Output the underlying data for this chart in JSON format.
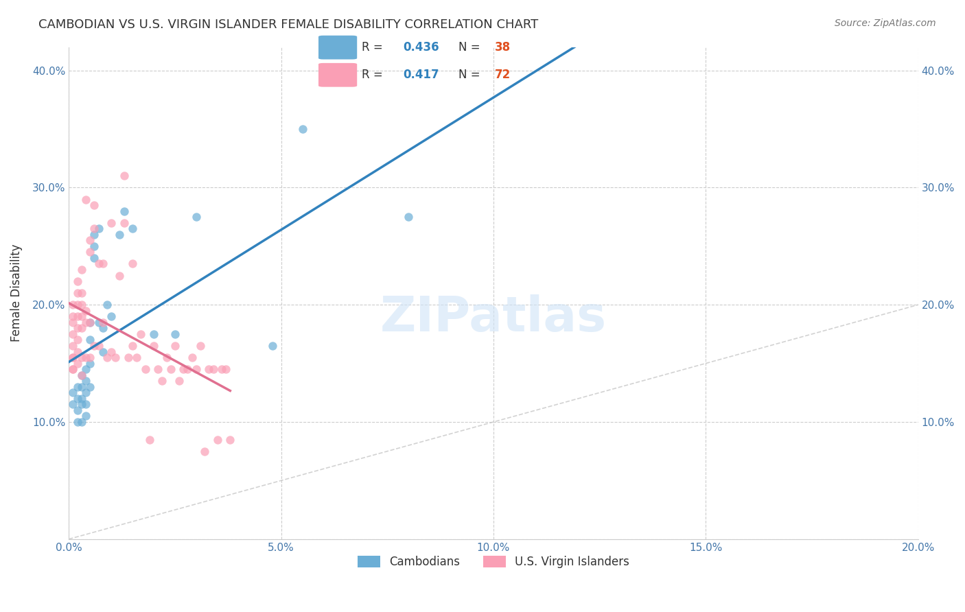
{
  "title": "CAMBODIAN VS U.S. VIRGIN ISLANDER FEMALE DISABILITY CORRELATION CHART",
  "source": "Source: ZipAtlas.com",
  "ylabel": "Female Disability",
  "xlabel": "",
  "xlim": [
    0.0,
    0.2
  ],
  "ylim": [
    0.0,
    0.42
  ],
  "xticks": [
    0.0,
    0.05,
    0.1,
    0.15,
    0.2
  ],
  "yticks": [
    0.0,
    0.1,
    0.2,
    0.3,
    0.4
  ],
  "xtick_labels": [
    "0.0%",
    "5.0%",
    "10.0%",
    "15.0%",
    "20.0%"
  ],
  "ytick_labels": [
    "",
    "10.0%",
    "20.0%",
    "30.0%",
    "40.0%"
  ],
  "legend_r1": "R = 0.436",
  "legend_n1": "N = 38",
  "legend_r2": "R = 0.417",
  "legend_n2": "N = 72",
  "color_blue": "#6baed6",
  "color_pink": "#fa9fb5",
  "color_blue_line": "#3182bd",
  "color_pink_line": "#e07090",
  "color_dashed": "#c0c0c0",
  "watermark": "ZIPatlas",
  "cambodian_x": [
    0.001,
    0.001,
    0.002,
    0.002,
    0.002,
    0.002,
    0.003,
    0.003,
    0.003,
    0.003,
    0.003,
    0.004,
    0.004,
    0.004,
    0.004,
    0.004,
    0.005,
    0.005,
    0.005,
    0.005,
    0.006,
    0.006,
    0.006,
    0.007,
    0.007,
    0.008,
    0.008,
    0.009,
    0.01,
    0.012,
    0.013,
    0.015,
    0.02,
    0.025,
    0.03,
    0.048,
    0.055,
    0.08
  ],
  "cambodian_y": [
    0.125,
    0.115,
    0.13,
    0.12,
    0.11,
    0.1,
    0.14,
    0.13,
    0.12,
    0.115,
    0.1,
    0.145,
    0.135,
    0.125,
    0.115,
    0.105,
    0.185,
    0.17,
    0.15,
    0.13,
    0.26,
    0.25,
    0.24,
    0.265,
    0.185,
    0.18,
    0.16,
    0.2,
    0.19,
    0.26,
    0.28,
    0.265,
    0.175,
    0.175,
    0.275,
    0.165,
    0.35,
    0.275
  ],
  "vi_x": [
    0.001,
    0.001,
    0.001,
    0.001,
    0.001,
    0.001,
    0.001,
    0.001,
    0.001,
    0.002,
    0.002,
    0.002,
    0.002,
    0.002,
    0.002,
    0.002,
    0.002,
    0.003,
    0.003,
    0.003,
    0.003,
    0.003,
    0.003,
    0.003,
    0.004,
    0.004,
    0.004,
    0.004,
    0.005,
    0.005,
    0.005,
    0.005,
    0.006,
    0.006,
    0.006,
    0.007,
    0.007,
    0.008,
    0.008,
    0.009,
    0.01,
    0.01,
    0.011,
    0.012,
    0.013,
    0.013,
    0.014,
    0.015,
    0.015,
    0.016,
    0.017,
    0.018,
    0.019,
    0.02,
    0.021,
    0.022,
    0.023,
    0.024,
    0.025,
    0.026,
    0.027,
    0.028,
    0.029,
    0.03,
    0.031,
    0.032,
    0.033,
    0.034,
    0.035,
    0.036,
    0.037,
    0.038
  ],
  "vi_y": [
    0.155,
    0.145,
    0.2,
    0.19,
    0.185,
    0.175,
    0.165,
    0.155,
    0.145,
    0.22,
    0.21,
    0.2,
    0.19,
    0.18,
    0.17,
    0.16,
    0.15,
    0.23,
    0.21,
    0.2,
    0.19,
    0.18,
    0.155,
    0.14,
    0.29,
    0.195,
    0.185,
    0.155,
    0.255,
    0.245,
    0.185,
    0.155,
    0.285,
    0.265,
    0.165,
    0.235,
    0.165,
    0.235,
    0.185,
    0.155,
    0.27,
    0.16,
    0.155,
    0.225,
    0.31,
    0.27,
    0.155,
    0.235,
    0.165,
    0.155,
    0.175,
    0.145,
    0.085,
    0.165,
    0.145,
    0.135,
    0.155,
    0.145,
    0.165,
    0.135,
    0.145,
    0.145,
    0.155,
    0.145,
    0.165,
    0.075,
    0.145,
    0.145,
    0.085,
    0.145,
    0.145,
    0.085
  ]
}
